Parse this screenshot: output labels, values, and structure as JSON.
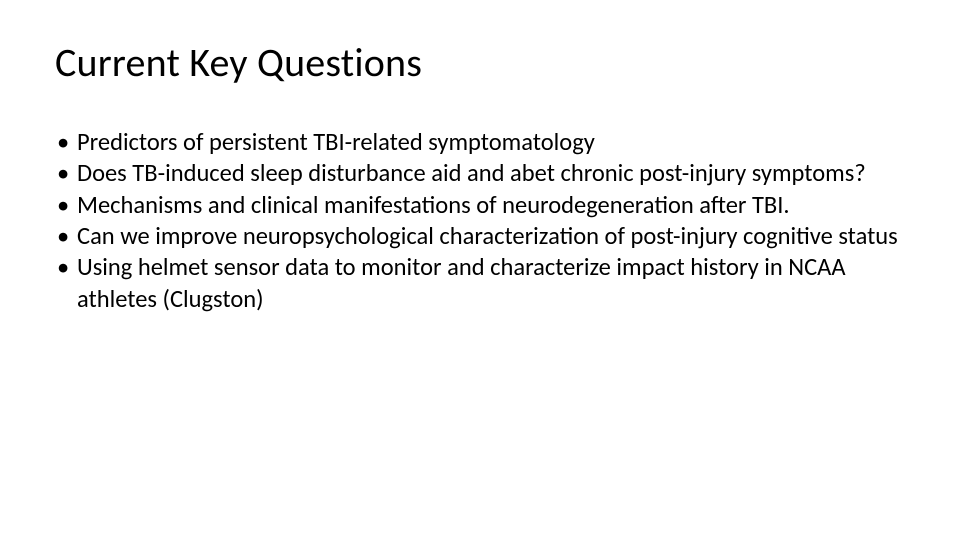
{
  "slide": {
    "title": "Current Key Questions",
    "bullets": [
      "Predictors of persistent TBI-related symptomatology",
      "Does TB-induced sleep disturbance aid and abet chronic post-injury symptoms?",
      "Mechanisms and clinical manifestations of neurodegeneration after TBI.",
      "Can we improve neuropsychological characterization of post-injury cognitive status",
      "Using helmet sensor data to monitor and characterize impact history in NCAA athletes (Clugston)"
    ]
  },
  "style": {
    "background_color": "#ffffff",
    "text_color": "#000000",
    "title_fontsize_pt": 30,
    "body_fontsize_pt": 18.5,
    "font_family": "Calibri"
  }
}
